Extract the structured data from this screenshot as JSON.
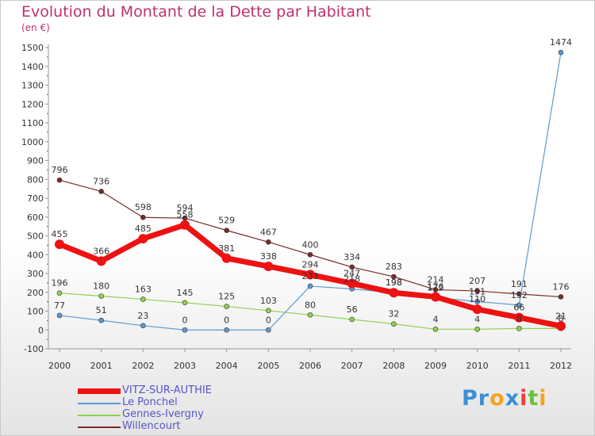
{
  "title": "Evolution du Montant de la Dette par Habitant",
  "subtitle": "(en €)",
  "logo": {
    "text": "Proxiti",
    "letters": [
      "P",
      "r",
      "o",
      "x",
      "i",
      "t",
      "i"
    ],
    "colors": [
      "#3b8fd6",
      "#3b8fd6",
      "#f7a21b",
      "#3b8fd6",
      "#e8423a",
      "#6cbf3a",
      "#f7a21b"
    ]
  },
  "chart_data": {
    "type": "line",
    "x": [
      "2000",
      "2001",
      "2002",
      "2003",
      "2004",
      "2005",
      "2006",
      "2007",
      "2008",
      "2009",
      "2010",
      "2011",
      "2012"
    ],
    "ylim": [
      -100,
      1500
    ],
    "yticks": [
      -100,
      0,
      100,
      200,
      300,
      400,
      500,
      600,
      700,
      800,
      900,
      1000,
      1100,
      1200,
      1300,
      1400,
      1500
    ],
    "grid": false,
    "legend_position": "bottom-left",
    "series": [
      {
        "name": "VITZ-SUR-AUTHIE",
        "color": "#ee1111",
        "width": 7,
        "values": [
          455,
          366,
          485,
          558,
          381,
          338,
          294,
          247,
          198,
          176,
          110,
          66,
          21
        ],
        "labels": [
          "455",
          "366",
          "485",
          "558",
          "381",
          "338",
          "294",
          "247",
          "198",
          "176",
          "110",
          "66",
          "21"
        ]
      },
      {
        "name": "Le Ponchel",
        "color": "#5b9bd5",
        "width": 1.2,
        "values": [
          77,
          51,
          23,
          0,
          0,
          0,
          233,
          218,
          198,
          172,
          151,
          132,
          1474
        ],
        "labels": [
          "77",
          "51",
          "23",
          "0",
          "0",
          "0",
          "233",
          "218",
          "198",
          "172",
          "151",
          "132",
          "1474"
        ]
      },
      {
        "name": "Gennes-Ivergny",
        "color": "#8fd14f",
        "width": 1.2,
        "values": [
          196,
          180,
          163,
          145,
          125,
          103,
          80,
          56,
          32,
          4,
          4,
          8,
          8
        ],
        "labels": [
          "196",
          "180",
          "163",
          "145",
          "125",
          "103",
          "80",
          "56",
          "32",
          "4",
          "4",
          "8",
          "8"
        ]
      },
      {
        "name": "Willencourt",
        "color": "#7a2a2a",
        "width": 1.2,
        "values": [
          796,
          736,
          598,
          594,
          529,
          467,
          400,
          334,
          283,
          214,
          207,
          191,
          176
        ],
        "labels": [
          "796",
          "736",
          "598",
          "594",
          "529",
          "467",
          "400",
          "334",
          "283",
          "214",
          "207",
          "191",
          "176"
        ]
      }
    ]
  }
}
